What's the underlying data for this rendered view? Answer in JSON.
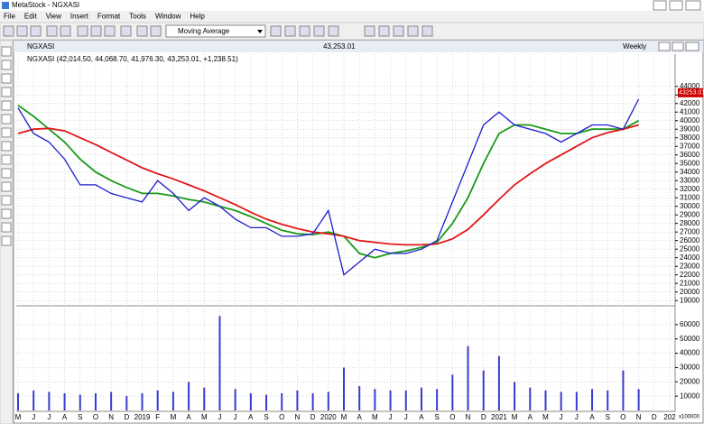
{
  "window_title": "MetaStock - NGXASI",
  "menu": [
    "File",
    "Edit",
    "View",
    "Insert",
    "Format",
    "Tools",
    "Window",
    "Help"
  ],
  "toolbar": {
    "indicator": "Moving Average"
  },
  "chart_window": {
    "price": "43,253.01",
    "period": "Weekly"
  },
  "chart_data": {
    "type": "line",
    "legend_text": "NGXASI (42,014.50, 44,068.70, 41,976.30, 43,253.01, +1,238.51)",
    "last_price": 43253.01,
    "categories": [
      "M",
      "J",
      "J",
      "A",
      "S",
      "O",
      "N",
      "D",
      "2019",
      "F",
      "M",
      "A",
      "M",
      "J",
      "J",
      "A",
      "S",
      "O",
      "N",
      "D",
      "2020",
      "M",
      "A",
      "M",
      "J",
      "J",
      "A",
      "S",
      "O",
      "N",
      "D",
      "2021",
      "M",
      "A",
      "M",
      "J",
      "J",
      "A",
      "S",
      "O",
      "N",
      "D",
      "202"
    ],
    "series": [
      {
        "name": "NGXASI",
        "color": "#1c1ccc",
        "values": [
          41500,
          38500,
          37500,
          35500,
          32500,
          32500,
          31500,
          31000,
          30500,
          33000,
          31500,
          29500,
          31000,
          30000,
          28500,
          27500,
          27500,
          26500,
          26500,
          26800,
          29500,
          22000,
          23500,
          25000,
          24500,
          24500,
          25000,
          26000,
          30500,
          35000,
          39500,
          41000,
          39500,
          39000,
          38500,
          37500,
          38500,
          39500,
          39500,
          39000,
          42500,
          null,
          null
        ]
      },
      {
        "color": "#1a9a1a",
        "values": [
          41800,
          40500,
          39000,
          37500,
          35500,
          34000,
          33000,
          32200,
          31500,
          31500,
          31200,
          30800,
          30500,
          30000,
          29500,
          28800,
          28000,
          27200,
          26800,
          26700,
          27000,
          26500,
          24500,
          24000,
          24500,
          24800,
          25200,
          25800,
          28000,
          31000,
          35000,
          38500,
          39500,
          39500,
          39000,
          38500,
          38500,
          39000,
          39000,
          39000,
          40000,
          null,
          null
        ]
      },
      {
        "color": "#e01818",
        "values": [
          38500,
          39000,
          39100,
          38800,
          38000,
          37200,
          36300,
          35400,
          34500,
          33800,
          33200,
          32500,
          31800,
          31000,
          30200,
          29300,
          28500,
          27900,
          27400,
          27000,
          26800,
          26500,
          26000,
          25800,
          25600,
          25500,
          25500,
          25600,
          26200,
          27300,
          29000,
          30800,
          32500,
          33800,
          35000,
          36000,
          37000,
          38000,
          38600,
          39000,
          39500,
          null,
          null
        ]
      }
    ],
    "ylim": [
      18700,
      46500
    ],
    "yticks": [
      19000,
      20000,
      21000,
      22000,
      23000,
      24000,
      25000,
      26000,
      27000,
      28000,
      29000,
      30000,
      31000,
      32000,
      33000,
      34000,
      35000,
      36000,
      37000,
      38000,
      39000,
      40000,
      41000,
      42000,
      43000,
      44000
    ],
    "grid": true,
    "volume": {
      "color": "#3a3ad0",
      "values": [
        12000,
        14000,
        13000,
        12000,
        11000,
        12000,
        13000,
        10000,
        12000,
        14000,
        13000,
        20000,
        16000,
        66000,
        15000,
        12000,
        11000,
        12000,
        14000,
        12000,
        13000,
        30000,
        17000,
        15000,
        14000,
        14000,
        16000,
        15000,
        25000,
        45000,
        28000,
        38000,
        20000,
        16000,
        14000,
        13000,
        13000,
        15000,
        14000,
        28000,
        15000,
        null,
        null
      ],
      "ylim": [
        0,
        70000
      ],
      "yticks": [
        10000,
        20000,
        30000,
        40000,
        50000,
        60000
      ],
      "scale_note": "x100000"
    }
  }
}
